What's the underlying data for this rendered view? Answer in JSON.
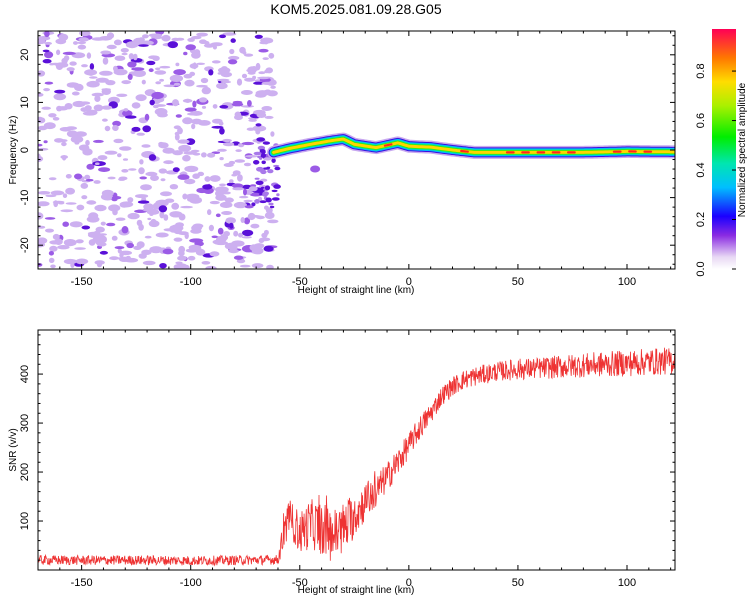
{
  "title": "KOM5.2025.081.09.28.G05",
  "chart_data": [
    {
      "type": "heatmap",
      "xlabel": "Height of straight line (km)",
      "ylabel": "Frequency (Hz)",
      "xlim": [
        -170,
        122
      ],
      "ylim": [
        -25,
        25
      ],
      "xticks": [
        -150,
        -100,
        -50,
        0,
        50,
        100
      ],
      "yticks": [
        -20,
        -10,
        0,
        10,
        20
      ],
      "grid": false,
      "noise_region_x": [
        -170,
        -62
      ],
      "signal_start_x": -62,
      "ridge": {
        "x": [
          -62,
          -55,
          -45,
          -35,
          -30,
          -25,
          -15,
          -5,
          0,
          10,
          20,
          30,
          40,
          60,
          80,
          100,
          122
        ],
        "y": [
          -0.5,
          0.3,
          1.2,
          2.0,
          2.3,
          1.2,
          0.5,
          1.5,
          0.8,
          0.6,
          0.0,
          -0.5,
          -0.5,
          -0.5,
          -0.5,
          -0.3,
          -0.4
        ]
      },
      "colorbar": {
        "label": "Normalized spectral amplitude",
        "range": [
          0,
          0.97
        ],
        "ticks": [
          0.0,
          0.2,
          0.4,
          0.6,
          0.8
        ],
        "tick_labels": [
          "0.0",
          "0.2",
          "0.4",
          "0.6",
          "0.8"
        ]
      }
    },
    {
      "type": "line",
      "xlabel": "Height of straight line (km)",
      "ylabel": "SNR (v/v)",
      "xlim": [
        -170,
        122
      ],
      "ylim": [
        0,
        490
      ],
      "xticks": [
        -150,
        -100,
        -50,
        0,
        50,
        100
      ],
      "yticks": [
        100,
        200,
        300,
        400
      ],
      "grid": false,
      "series": [
        {
          "color": "#ee3333",
          "x": [
            -170,
            -150,
            -120,
            -100,
            -80,
            -60,
            -58,
            -55,
            -50,
            -45,
            -40,
            -35,
            -30,
            -25,
            -20,
            -15,
            -10,
            -5,
            0,
            5,
            10,
            15,
            20,
            25,
            30,
            35,
            40,
            50,
            60,
            70,
            80,
            90,
            100,
            110,
            122
          ],
          "y": [
            20,
            20,
            20,
            19,
            20,
            21,
            60,
            110,
            75,
            95,
            85,
            70,
            85,
            110,
            140,
            160,
            190,
            220,
            255,
            290,
            320,
            355,
            375,
            388,
            395,
            400,
            405,
            410,
            412,
            415,
            418,
            420,
            422,
            425,
            427
          ],
          "spread": [
            10,
            10,
            10,
            10,
            10,
            10,
            30,
            35,
            45,
            50,
            55,
            55,
            55,
            45,
            40,
            35,
            30,
            30,
            25,
            25,
            22,
            20,
            20,
            20,
            20,
            20,
            20,
            22,
            22,
            24,
            25,
            26,
            27,
            28,
            28
          ]
        }
      ]
    }
  ]
}
